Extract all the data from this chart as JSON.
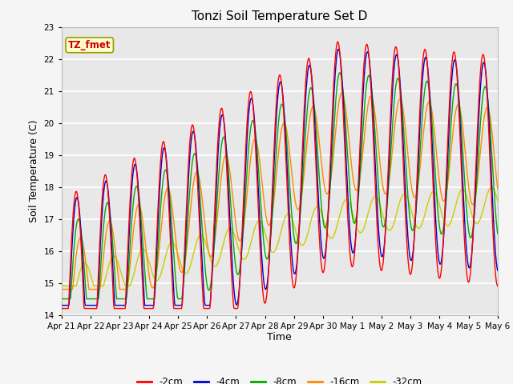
{
  "title": "Tonzi Soil Temperature Set D",
  "xlabel": "Time",
  "ylabel": "Soil Temperature (C)",
  "ylim": [
    14.0,
    23.0
  ],
  "yticks": [
    14.0,
    15.0,
    16.0,
    17.0,
    18.0,
    19.0,
    20.0,
    21.0,
    22.0,
    23.0
  ],
  "xtick_labels": [
    "Apr 21",
    "Apr 22",
    "Apr 23",
    "Apr 24",
    "Apr 25",
    "Apr 26",
    "Apr 27",
    "Apr 28",
    "Apr 29",
    "Apr 30",
    "May 1",
    "May 2",
    "May 3",
    "May 4",
    "May 5",
    "May 6"
  ],
  "series_labels": [
    "-2cm",
    "-4cm",
    "-8cm",
    "-16cm",
    "-32cm"
  ],
  "series_colors": [
    "#ff0000",
    "#0000cc",
    "#00aa00",
    "#ff8800",
    "#cccc00"
  ],
  "legend_label": "TZ_fmet",
  "legend_box_color": "#ffffcc",
  "legend_box_edge": "#999900",
  "plot_bg_color": "#e8e8e8",
  "fig_bg_color": "#f5f5f5",
  "grid_color": "#ffffff",
  "n_points": 720
}
